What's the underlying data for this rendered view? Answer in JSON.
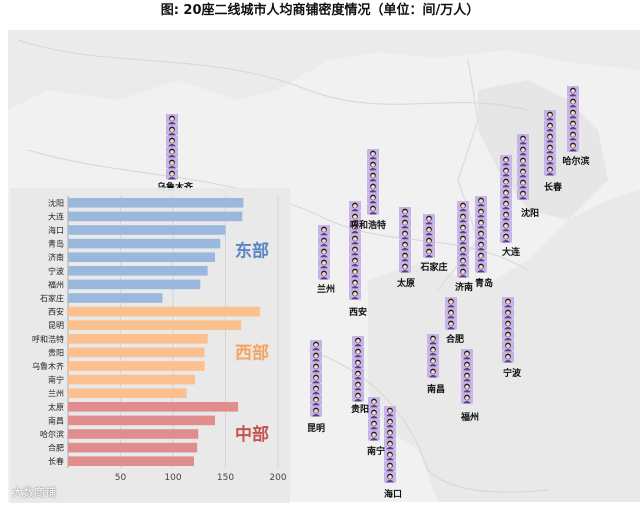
{
  "title": "图: 20座二线城市人均商铺密度情况（单位：间/万人）",
  "watermark": "大数商铺",
  "colors": {
    "east": "#9ab8dc",
    "west": "#fbc08e",
    "central": "#e08d8d",
    "east_text": "#5b86c3",
    "west_text": "#f4a460",
    "central_text": "#c65252"
  },
  "map_labels": [
    "沈阳",
    "大连",
    "海口",
    "青岛",
    "济南",
    "宁波",
    "福州",
    "石家庄",
    "西安",
    "昆明",
    "呼和浩特",
    "贵阳",
    "乌鲁木齐",
    "南宁",
    "兰州",
    "太原",
    "南昌",
    "哈尔滨",
    "合肥",
    "长春"
  ],
  "chart_data": {
    "type": "bar",
    "orientation": "horizontal",
    "categories": [
      "沈阳",
      "大连",
      "海口",
      "青岛",
      "济南",
      "宁波",
      "福州",
      "石家庄",
      "西安",
      "昆明",
      "呼和浩特",
      "贵阳",
      "乌鲁木齐",
      "南宁",
      "兰州",
      "太原",
      "南昌",
      "哈尔滨",
      "合肥",
      "长春"
    ],
    "values": [
      167,
      166,
      150,
      145,
      140,
      133,
      126,
      90,
      183,
      165,
      133,
      130,
      130,
      121,
      113,
      162,
      140,
      124,
      123,
      120
    ],
    "groups": [
      {
        "name": "东部",
        "start": 0,
        "count": 8,
        "color": "#9ab8dc"
      },
      {
        "name": "西部",
        "start": 8,
        "count": 7,
        "color": "#fbc08e"
      },
      {
        "name": "中部",
        "start": 15,
        "count": 5,
        "color": "#e08d8d"
      }
    ],
    "xlim": [
      0,
      200
    ],
    "xticks": [
      50,
      100,
      150,
      200
    ],
    "grid": true
  },
  "pictogram": [
    {
      "name": "乌鲁木齐",
      "icons": 6
    },
    {
      "name": "兰州",
      "icons": 5
    },
    {
      "name": "呼和浩特",
      "icons": 6
    },
    {
      "name": "西安",
      "icons": 9
    },
    {
      "name": "太原",
      "icons": 6
    },
    {
      "name": "石家庄",
      "icons": 4
    },
    {
      "name": "济南",
      "icons": 7
    },
    {
      "name": "青岛",
      "icons": 7
    },
    {
      "name": "大连",
      "icons": 8
    },
    {
      "name": "沈阳",
      "icons": 6
    },
    {
      "name": "长春",
      "icons": 6
    },
    {
      "name": "哈尔滨",
      "icons": 6
    },
    {
      "name": "昆明",
      "icons": 7
    },
    {
      "name": "贵阳",
      "icons": 6
    },
    {
      "name": "南宁",
      "icons": 4
    },
    {
      "name": "海口",
      "icons": 7
    },
    {
      "name": "合肥",
      "icons": 3
    },
    {
      "name": "南昌",
      "icons": 4
    },
    {
      "name": "福州",
      "icons": 5
    },
    {
      "name": "宁波",
      "icons": 6
    }
  ]
}
